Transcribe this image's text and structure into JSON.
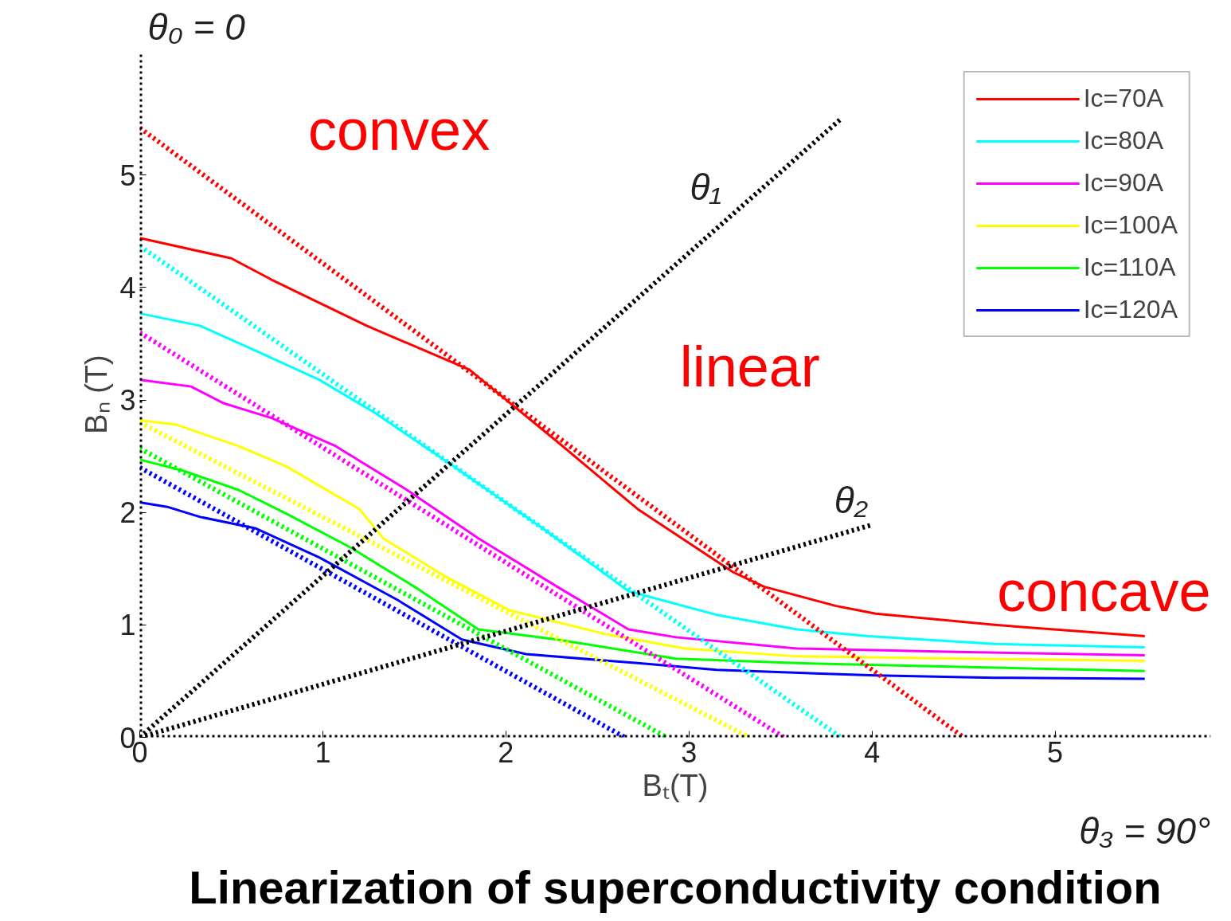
{
  "chart_data": {
    "type": "line",
    "title": "Linearization of superconductivity condition",
    "xlabel": "Bₜ(T)",
    "ylabel": "Bₙ (T)",
    "xlim": [
      0,
      5.85
    ],
    "ylim": [
      0,
      6.1
    ],
    "xticks": [
      0,
      1,
      2,
      3,
      4,
      5
    ],
    "yticks": [
      0,
      1,
      2,
      3,
      4,
      5
    ],
    "grid": false,
    "legend": "top right",
    "marker": "none",
    "annotations": [
      "convex",
      "linear",
      "concave"
    ],
    "series": [
      {
        "name": "Ic=70A",
        "color": "#ff0000",
        "line_style": "solid",
        "x": [
          0,
          0.5,
          0.72,
          1.24,
          1.8,
          2.28,
          2.72,
          3.24,
          3.41,
          3.8,
          4.02,
          4.67,
          5.49
        ],
        "values": [
          4.44,
          4.26,
          4.07,
          3.66,
          3.27,
          2.63,
          2.03,
          1.47,
          1.34,
          1.17,
          1.1,
          1.0,
          0.9
        ]
      },
      {
        "name": "Ic=80A",
        "color": "#00ffff",
        "line_style": "solid",
        "x": [
          0,
          0.33,
          0.63,
          0.98,
          1.28,
          1.67,
          2.2,
          2.67,
          3.15,
          3.59,
          3.98,
          4.67,
          5.49
        ],
        "values": [
          3.77,
          3.66,
          3.44,
          3.18,
          2.89,
          2.46,
          1.86,
          1.3,
          1.09,
          0.96,
          0.9,
          0.83,
          0.8
        ]
      },
      {
        "name": "Ic=90A",
        "color": "#ff00ff",
        "line_style": "solid",
        "x": [
          0,
          0.28,
          0.46,
          0.72,
          1.07,
          1.46,
          1.85,
          2.28,
          2.67,
          2.93,
          3.59,
          4.46,
          5.49
        ],
        "values": [
          3.18,
          3.12,
          2.97,
          2.84,
          2.59,
          2.2,
          1.77,
          1.34,
          0.96,
          0.89,
          0.79,
          0.76,
          0.73
        ]
      },
      {
        "name": "Ic=100A",
        "color": "#ffff00",
        "line_style": "solid",
        "x": [
          0,
          0.2,
          0.54,
          0.8,
          1.2,
          1.33,
          1.67,
          2.02,
          2.54,
          2.98,
          3.59,
          5.49
        ],
        "values": [
          2.82,
          2.78,
          2.59,
          2.41,
          2.03,
          1.77,
          1.43,
          1.13,
          0.92,
          0.79,
          0.72,
          0.68
        ]
      },
      {
        "name": "Ic=110A",
        "color": "#00ff00",
        "line_style": "solid",
        "x": [
          0,
          0.24,
          0.54,
          0.8,
          1.15,
          1.5,
          1.85,
          2.28,
          2.93,
          3.59,
          5.49
        ],
        "values": [
          2.47,
          2.37,
          2.2,
          1.99,
          1.69,
          1.34,
          0.96,
          0.87,
          0.7,
          0.66,
          0.59
        ]
      },
      {
        "name": "Ic=120A",
        "color": "#0000ff",
        "line_style": "solid",
        "x": [
          0,
          0.15,
          0.33,
          0.63,
          0.98,
          1.41,
          1.76,
          2.11,
          2.72,
          3.15,
          4.02,
          4.67,
          5.49
        ],
        "values": [
          2.09,
          2.05,
          1.96,
          1.86,
          1.6,
          1.22,
          0.87,
          0.74,
          0.66,
          0.6,
          0.55,
          0.53,
          0.52
        ]
      },
      {
        "color": "#ff0000",
        "line_style": "dotted",
        "x": [
          0,
          4.5
        ],
        "values": [
          5.42,
          0
        ]
      },
      {
        "color": "#00ffff",
        "line_style": "dotted",
        "x": [
          0,
          3.83
        ],
        "values": [
          4.37,
          0
        ]
      },
      {
        "color": "#ff00ff",
        "line_style": "dotted",
        "x": [
          0,
          3.52
        ],
        "values": [
          3.6,
          0
        ]
      },
      {
        "color": "#ffff00",
        "line_style": "dotted",
        "x": [
          0,
          3.33
        ],
        "values": [
          2.8,
          0
        ]
      },
      {
        "color": "#00ff00",
        "line_style": "dotted",
        "x": [
          0,
          2.88
        ],
        "values": [
          2.57,
          0
        ]
      },
      {
        "color": "#0000ff",
        "line_style": "dotted",
        "x": [
          0,
          2.65
        ],
        "values": [
          2.4,
          0
        ]
      },
      {
        "name": "θ₀ = 0",
        "color": "#000000",
        "line_style": "dotted",
        "x": [
          0,
          0
        ],
        "values": [
          0,
          6.1
        ]
      },
      {
        "name": "θ₁",
        "color": "#000000",
        "line_style": "dotted",
        "x": [
          0,
          3.83
        ],
        "values": [
          0,
          5.5
        ]
      },
      {
        "name": "θ₂",
        "color": "#000000",
        "line_style": "dotted",
        "x": [
          0,
          4.0
        ],
        "values": [
          0,
          1.89
        ]
      },
      {
        "name": "θ₃ = 90°",
        "color": "#000000",
        "line_style": "dotted",
        "x": [
          0,
          5.85
        ],
        "values": [
          0,
          0
        ]
      }
    ]
  }
}
